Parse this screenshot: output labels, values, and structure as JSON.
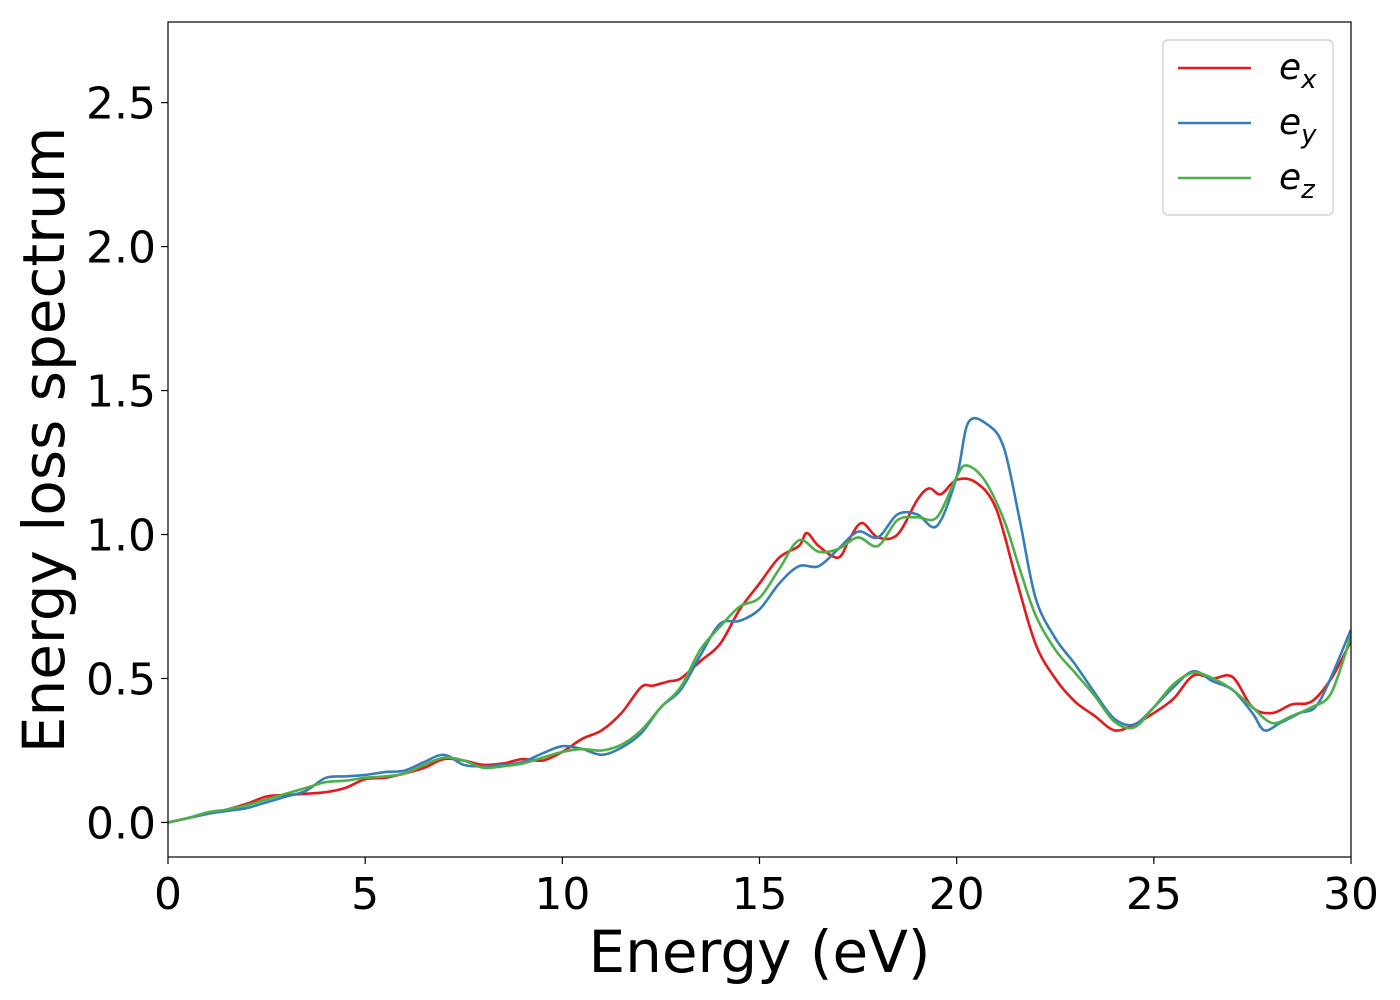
{
  "chart_data": {
    "type": "line",
    "xlabel": "Energy (eV)",
    "ylabel": "Energy loss spectrum",
    "xlim": [
      0,
      30
    ],
    "ylim": [
      -0.12,
      2.78
    ],
    "xticks": [
      0,
      5,
      10,
      15,
      20,
      25,
      30
    ],
    "xtick_labels": [
      "0",
      "5",
      "10",
      "15",
      "20",
      "25",
      "30"
    ],
    "yticks": [
      0.0,
      0.5,
      1.0,
      1.5,
      2.0,
      2.5
    ],
    "ytick_labels": [
      "0.0",
      "0.5",
      "1.0",
      "1.5",
      "2.0",
      "2.5"
    ],
    "grid": false,
    "legend_position": "top-right",
    "series": [
      {
        "name": "e",
        "subscript": "x",
        "color": "#e41a1c",
        "x": [
          0,
          0.5,
          1,
          1.5,
          2,
          2.5,
          3,
          3.5,
          4,
          4.5,
          5,
          5.5,
          6,
          6.5,
          7,
          7.5,
          8,
          8.5,
          9,
          9.5,
          10,
          10.5,
          11,
          11.5,
          12,
          12.3,
          12.7,
          13,
          13.5,
          14,
          14.5,
          15,
          15.5,
          16,
          16.2,
          16.5,
          17,
          17.3,
          17.6,
          18,
          18.5,
          19,
          19.3,
          19.6,
          20,
          20.5,
          21,
          21.5,
          22,
          22.5,
          23,
          23.5,
          24,
          24.5,
          25,
          25.5,
          26,
          26.5,
          27,
          27.5,
          28,
          28.5,
          29,
          29.5,
          30
        ],
        "y": [
          0,
          0.015,
          0.03,
          0.045,
          0.065,
          0.09,
          0.095,
          0.1,
          0.105,
          0.12,
          0.15,
          0.155,
          0.17,
          0.19,
          0.22,
          0.215,
          0.2,
          0.205,
          0.22,
          0.215,
          0.245,
          0.29,
          0.32,
          0.38,
          0.47,
          0.475,
          0.49,
          0.5,
          0.56,
          0.62,
          0.74,
          0.83,
          0.92,
          0.96,
          1.005,
          0.96,
          0.92,
          0.99,
          1.04,
          0.99,
          1.0,
          1.12,
          1.16,
          1.14,
          1.19,
          1.18,
          1.09,
          0.85,
          0.62,
          0.5,
          0.42,
          0.37,
          0.32,
          0.34,
          0.38,
          0.43,
          0.51,
          0.5,
          0.505,
          0.4,
          0.38,
          0.41,
          0.42,
          0.5,
          0.63
        ]
      },
      {
        "name": "e",
        "subscript": "y",
        "color": "#377eb8",
        "x": [
          0,
          0.5,
          1,
          1.5,
          2,
          2.5,
          3,
          3.5,
          4,
          4.5,
          5,
          5.5,
          6,
          6.5,
          7,
          7.5,
          8,
          8.5,
          9,
          9.5,
          10,
          10.5,
          11,
          11.5,
          12,
          12.5,
          13,
          13.5,
          14,
          14.5,
          15,
          15.5,
          16,
          16.5,
          17,
          17.5,
          18,
          18.5,
          19,
          19.5,
          20,
          20.3,
          20.8,
          21.2,
          21.6,
          22,
          22.5,
          23,
          23.5,
          24,
          24.5,
          25,
          25.5,
          26,
          26.5,
          27,
          27.5,
          27.8,
          28.2,
          28.7,
          29.2,
          30
        ],
        "y": [
          0,
          0.015,
          0.03,
          0.04,
          0.05,
          0.07,
          0.09,
          0.11,
          0.155,
          0.16,
          0.165,
          0.175,
          0.18,
          0.21,
          0.235,
          0.2,
          0.195,
          0.2,
          0.21,
          0.24,
          0.265,
          0.255,
          0.235,
          0.26,
          0.31,
          0.4,
          0.46,
          0.58,
          0.69,
          0.7,
          0.74,
          0.83,
          0.89,
          0.89,
          0.95,
          1.01,
          0.99,
          1.07,
          1.07,
          1.03,
          1.2,
          1.39,
          1.38,
          1.3,
          1.05,
          0.78,
          0.64,
          0.55,
          0.45,
          0.36,
          0.34,
          0.4,
          0.47,
          0.525,
          0.49,
          0.46,
          0.38,
          0.32,
          0.345,
          0.38,
          0.42,
          0.67
        ]
      },
      {
        "name": "e",
        "subscript": "z",
        "color": "#4daf4a",
        "x": [
          0,
          0.5,
          1,
          1.5,
          2,
          2.5,
          3,
          3.5,
          4,
          4.5,
          5,
          5.5,
          6,
          6.5,
          7,
          7.5,
          8,
          8.5,
          9,
          9.5,
          10,
          10.5,
          11,
          11.5,
          12,
          12.5,
          13,
          13.5,
          14,
          14.5,
          15,
          15.5,
          16,
          16.5,
          17,
          17.5,
          18,
          18.5,
          19,
          19.5,
          20,
          20.25,
          20.7,
          21.2,
          21.6,
          22,
          22.5,
          23,
          23.5,
          24,
          24.5,
          25,
          25.5,
          26,
          26.5,
          27,
          27.5,
          28,
          28.5,
          29,
          29.5,
          30
        ],
        "y": [
          0,
          0.015,
          0.035,
          0.045,
          0.06,
          0.08,
          0.1,
          0.12,
          0.14,
          0.145,
          0.155,
          0.16,
          0.17,
          0.2,
          0.225,
          0.215,
          0.19,
          0.195,
          0.205,
          0.225,
          0.245,
          0.255,
          0.25,
          0.27,
          0.32,
          0.4,
          0.47,
          0.6,
          0.68,
          0.75,
          0.78,
          0.88,
          0.98,
          0.94,
          0.95,
          0.99,
          0.96,
          1.05,
          1.06,
          1.06,
          1.2,
          1.24,
          1.19,
          1.05,
          0.88,
          0.72,
          0.6,
          0.52,
          0.44,
          0.35,
          0.33,
          0.4,
          0.48,
          0.52,
          0.5,
          0.46,
          0.4,
          0.345,
          0.37,
          0.4,
          0.45,
          0.65
        ]
      }
    ]
  }
}
